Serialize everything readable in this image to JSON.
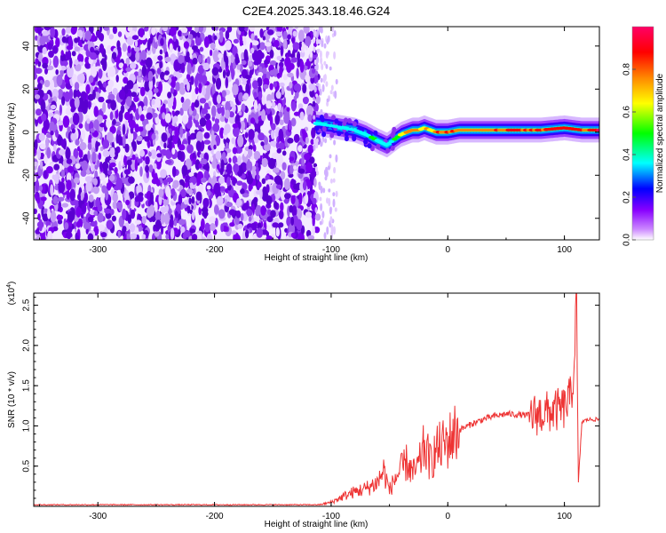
{
  "title": "C2E4.2025.343.18.46.G24",
  "chart_data": [
    {
      "type": "heatmap",
      "xlabel": "Height of straight line (km)",
      "ylabel": "Frequency (Hz)",
      "xlim": [
        -355,
        130
      ],
      "ylim": [
        -50,
        49
      ],
      "xticks": [
        -300,
        -200,
        -100,
        0,
        100
      ],
      "xtick_labels": [
        "-300",
        "-200",
        "-100",
        "0",
        "100"
      ],
      "yticks": [
        -40,
        -20,
        0,
        20,
        40
      ],
      "ytick_labels": [
        "-40",
        "-20",
        "0",
        "20",
        "40"
      ],
      "noise_region_x": [
        -355,
        -115
      ],
      "ridge": {
        "x": [
          -113,
          -100,
          -90,
          -80,
          -70,
          -60,
          -52,
          -45,
          -40,
          -35,
          -30,
          -25,
          -20,
          -15,
          -10,
          -5,
          0,
          10,
          20,
          40,
          60,
          80,
          100,
          115,
          130
        ],
        "freq": [
          4,
          3,
          2,
          1,
          -1,
          -4,
          -6,
          -3,
          -1,
          0,
          1,
          1,
          2,
          1,
          0,
          0,
          0,
          1,
          1,
          1,
          1,
          1,
          2,
          1,
          1
        ],
        "amplitude": [
          0.35,
          0.4,
          0.4,
          0.38,
          0.42,
          0.45,
          0.4,
          0.5,
          0.65,
          0.75,
          0.8,
          0.78,
          0.7,
          0.75,
          0.8,
          0.85,
          0.9,
          0.85,
          0.8,
          0.82,
          0.88,
          0.9,
          0.95,
          0.92,
          0.9
        ]
      },
      "colorbar": {
        "label": "Normalized spectral amplitude",
        "range": [
          0,
          1
        ],
        "ticks": [
          0,
          0.2,
          0.4,
          0.6,
          0.8
        ],
        "tick_labels": [
          "0.0",
          "0.2",
          "0.4",
          "0.6",
          "0.8"
        ],
        "colors": [
          "#ffffff",
          "#8800ff",
          "#0000ff",
          "#00ffff",
          "#00ff00",
          "#ffff00",
          "#ff8800",
          "#ff0000",
          "#ff0066"
        ]
      }
    },
    {
      "type": "line",
      "xlabel": "Height of straight line (km)",
      "ylabel": "SNR (10 * v/v)",
      "scale_label": "(x10",
      "scale_exponent": "4",
      "scale_close": ")",
      "xlim": [
        -355,
        130
      ],
      "ylim": [
        0,
        2.65
      ],
      "xticks": [
        -300,
        -200,
        -100,
        0,
        100
      ],
      "xtick_labels": [
        "-300",
        "-200",
        "-100",
        "0",
        "100"
      ],
      "yticks": [
        0.5,
        1.0,
        1.5,
        2.0,
        2.5
      ],
      "ytick_labels": [
        "0.5",
        "1.0",
        "1.5",
        "2.0",
        "2.5"
      ],
      "color": "#ee3333",
      "series": [
        {
          "name": "SNR",
          "x": [
            -355,
            -300,
            -250,
            -200,
            -150,
            -110,
            -100,
            -90,
            -80,
            -70,
            -60,
            -55,
            -50,
            -45,
            -40,
            -35,
            -30,
            -25,
            -20,
            -15,
            -10,
            -5,
            0,
            5,
            10,
            20,
            30,
            40,
            50,
            60,
            70,
            80,
            90,
            100,
            105,
            108,
            110,
            112,
            115,
            120,
            130
          ],
          "y": [
            0.02,
            0.02,
            0.02,
            0.02,
            0.02,
            0.02,
            0.05,
            0.12,
            0.18,
            0.22,
            0.3,
            0.45,
            0.2,
            0.35,
            0.45,
            0.55,
            0.4,
            0.5,
            0.75,
            0.55,
            0.7,
            0.75,
            0.8,
            0.9,
            0.95,
            1.02,
            1.08,
            1.12,
            1.15,
            1.14,
            1.13,
            1.15,
            1.18,
            1.22,
            1.35,
            1.6,
            2.65,
            0.3,
            1.05,
            1.08,
            1.08
          ]
        }
      ]
    }
  ]
}
